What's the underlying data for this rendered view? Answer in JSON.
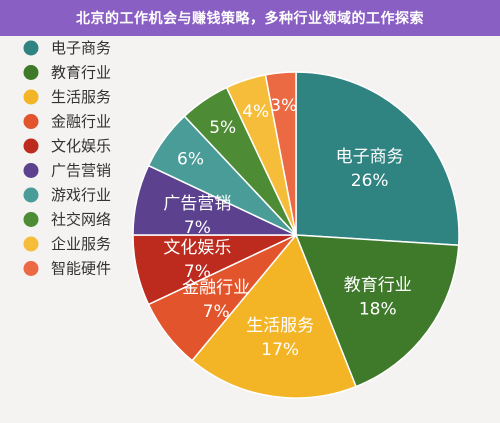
{
  "header": {
    "title": "北京的工作机会与赚钱策略，多种行业领域的工作探索"
  },
  "chart_data": {
    "type": "pie",
    "title": "",
    "categories": [
      "电子商务",
      "教育行业",
      "生活服务",
      "金融行业",
      "文化娱乐",
      "广告营销",
      "游戏行业",
      "社交网络",
      "企业服务",
      "智能硬件"
    ],
    "values": [
      26,
      18,
      17,
      7,
      7,
      7,
      6,
      5,
      4,
      3
    ],
    "value_labels": [
      "26%",
      "18%",
      "17%",
      "7%",
      "7%",
      "7%",
      "6%",
      "5%",
      "4%",
      "3%"
    ],
    "colors": [
      "#2f8381",
      "#3e7a29",
      "#f3b425",
      "#e2542b",
      "#bd2a1e",
      "#5c418f",
      "#4a9c98",
      "#4d8b34",
      "#f6bd3a",
      "#eb6a43"
    ],
    "show_name_in_slice": [
      true,
      true,
      true,
      true,
      true,
      true,
      false,
      false,
      false,
      false
    ],
    "legend": {
      "position": "left",
      "items": [
        "电子商务",
        "教育行业",
        "生活服务",
        "金融行业",
        "文化娱乐",
        "广告营销",
        "游戏行业",
        "社交网络",
        "企业服务",
        "智能硬件"
      ]
    }
  }
}
